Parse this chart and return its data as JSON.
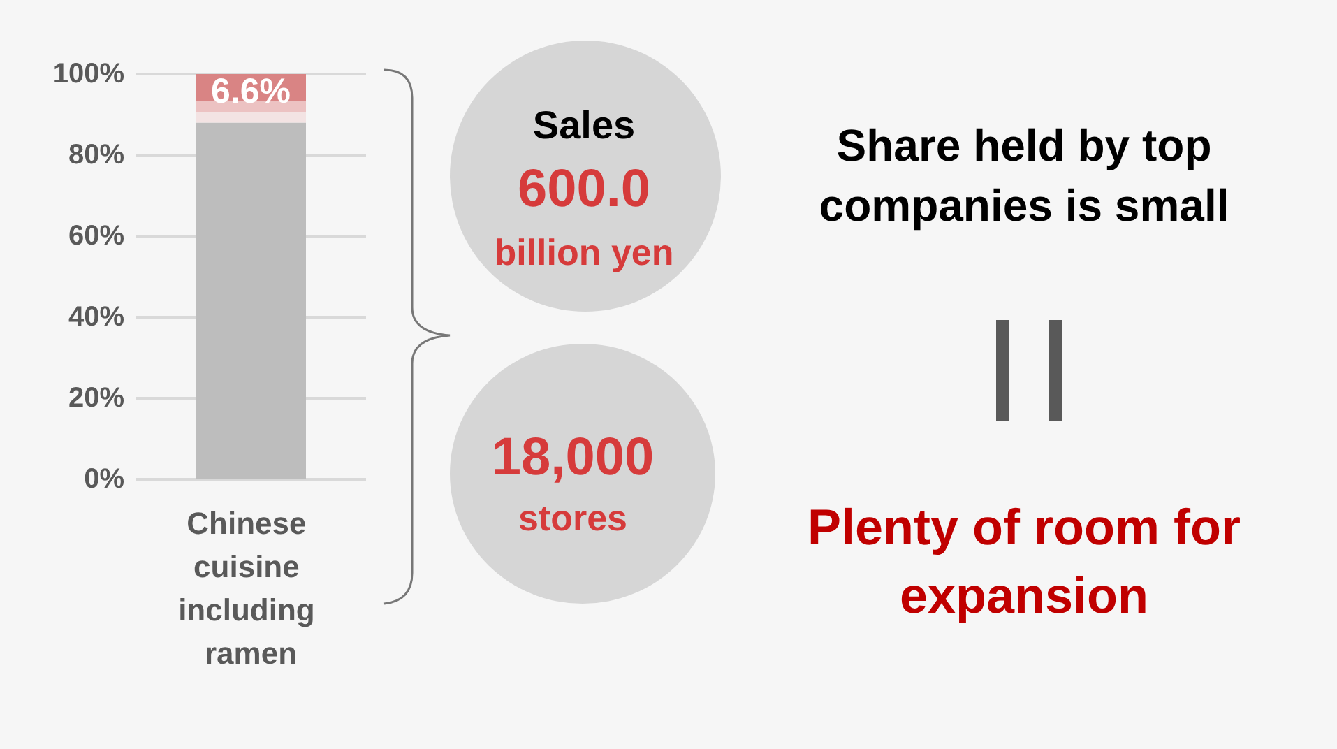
{
  "chart_data": {
    "type": "bar",
    "stacked": true,
    "categories": [
      "Chinese cuisine including ramen"
    ],
    "series": [
      {
        "color": "#bdbdbd",
        "values": [
          88
        ]
      },
      {
        "color": "#f3e3e3",
        "values": [
          2.5
        ]
      },
      {
        "color": "#ecc2c2",
        "values": [
          2.9
        ]
      },
      {
        "color": "#d98484",
        "values": [
          6.6
        ],
        "value_labels": [
          "6.6%"
        ]
      }
    ],
    "ylim": [
      0,
      100
    ],
    "yticks": [
      {
        "value": 0,
        "label": "0%"
      },
      {
        "value": 20,
        "label": "20%"
      },
      {
        "value": 40,
        "label": "40%"
      },
      {
        "value": 60,
        "label": "60%"
      },
      {
        "value": 80,
        "label": "80%"
      },
      {
        "value": 100,
        "label": "100%"
      }
    ],
    "grid": "y",
    "annotations": [
      "Sales",
      "600.0",
      "billion yen",
      "18,000",
      "stores",
      "Share held by top companies is small",
      "Plenty of room for expansion"
    ]
  }
}
